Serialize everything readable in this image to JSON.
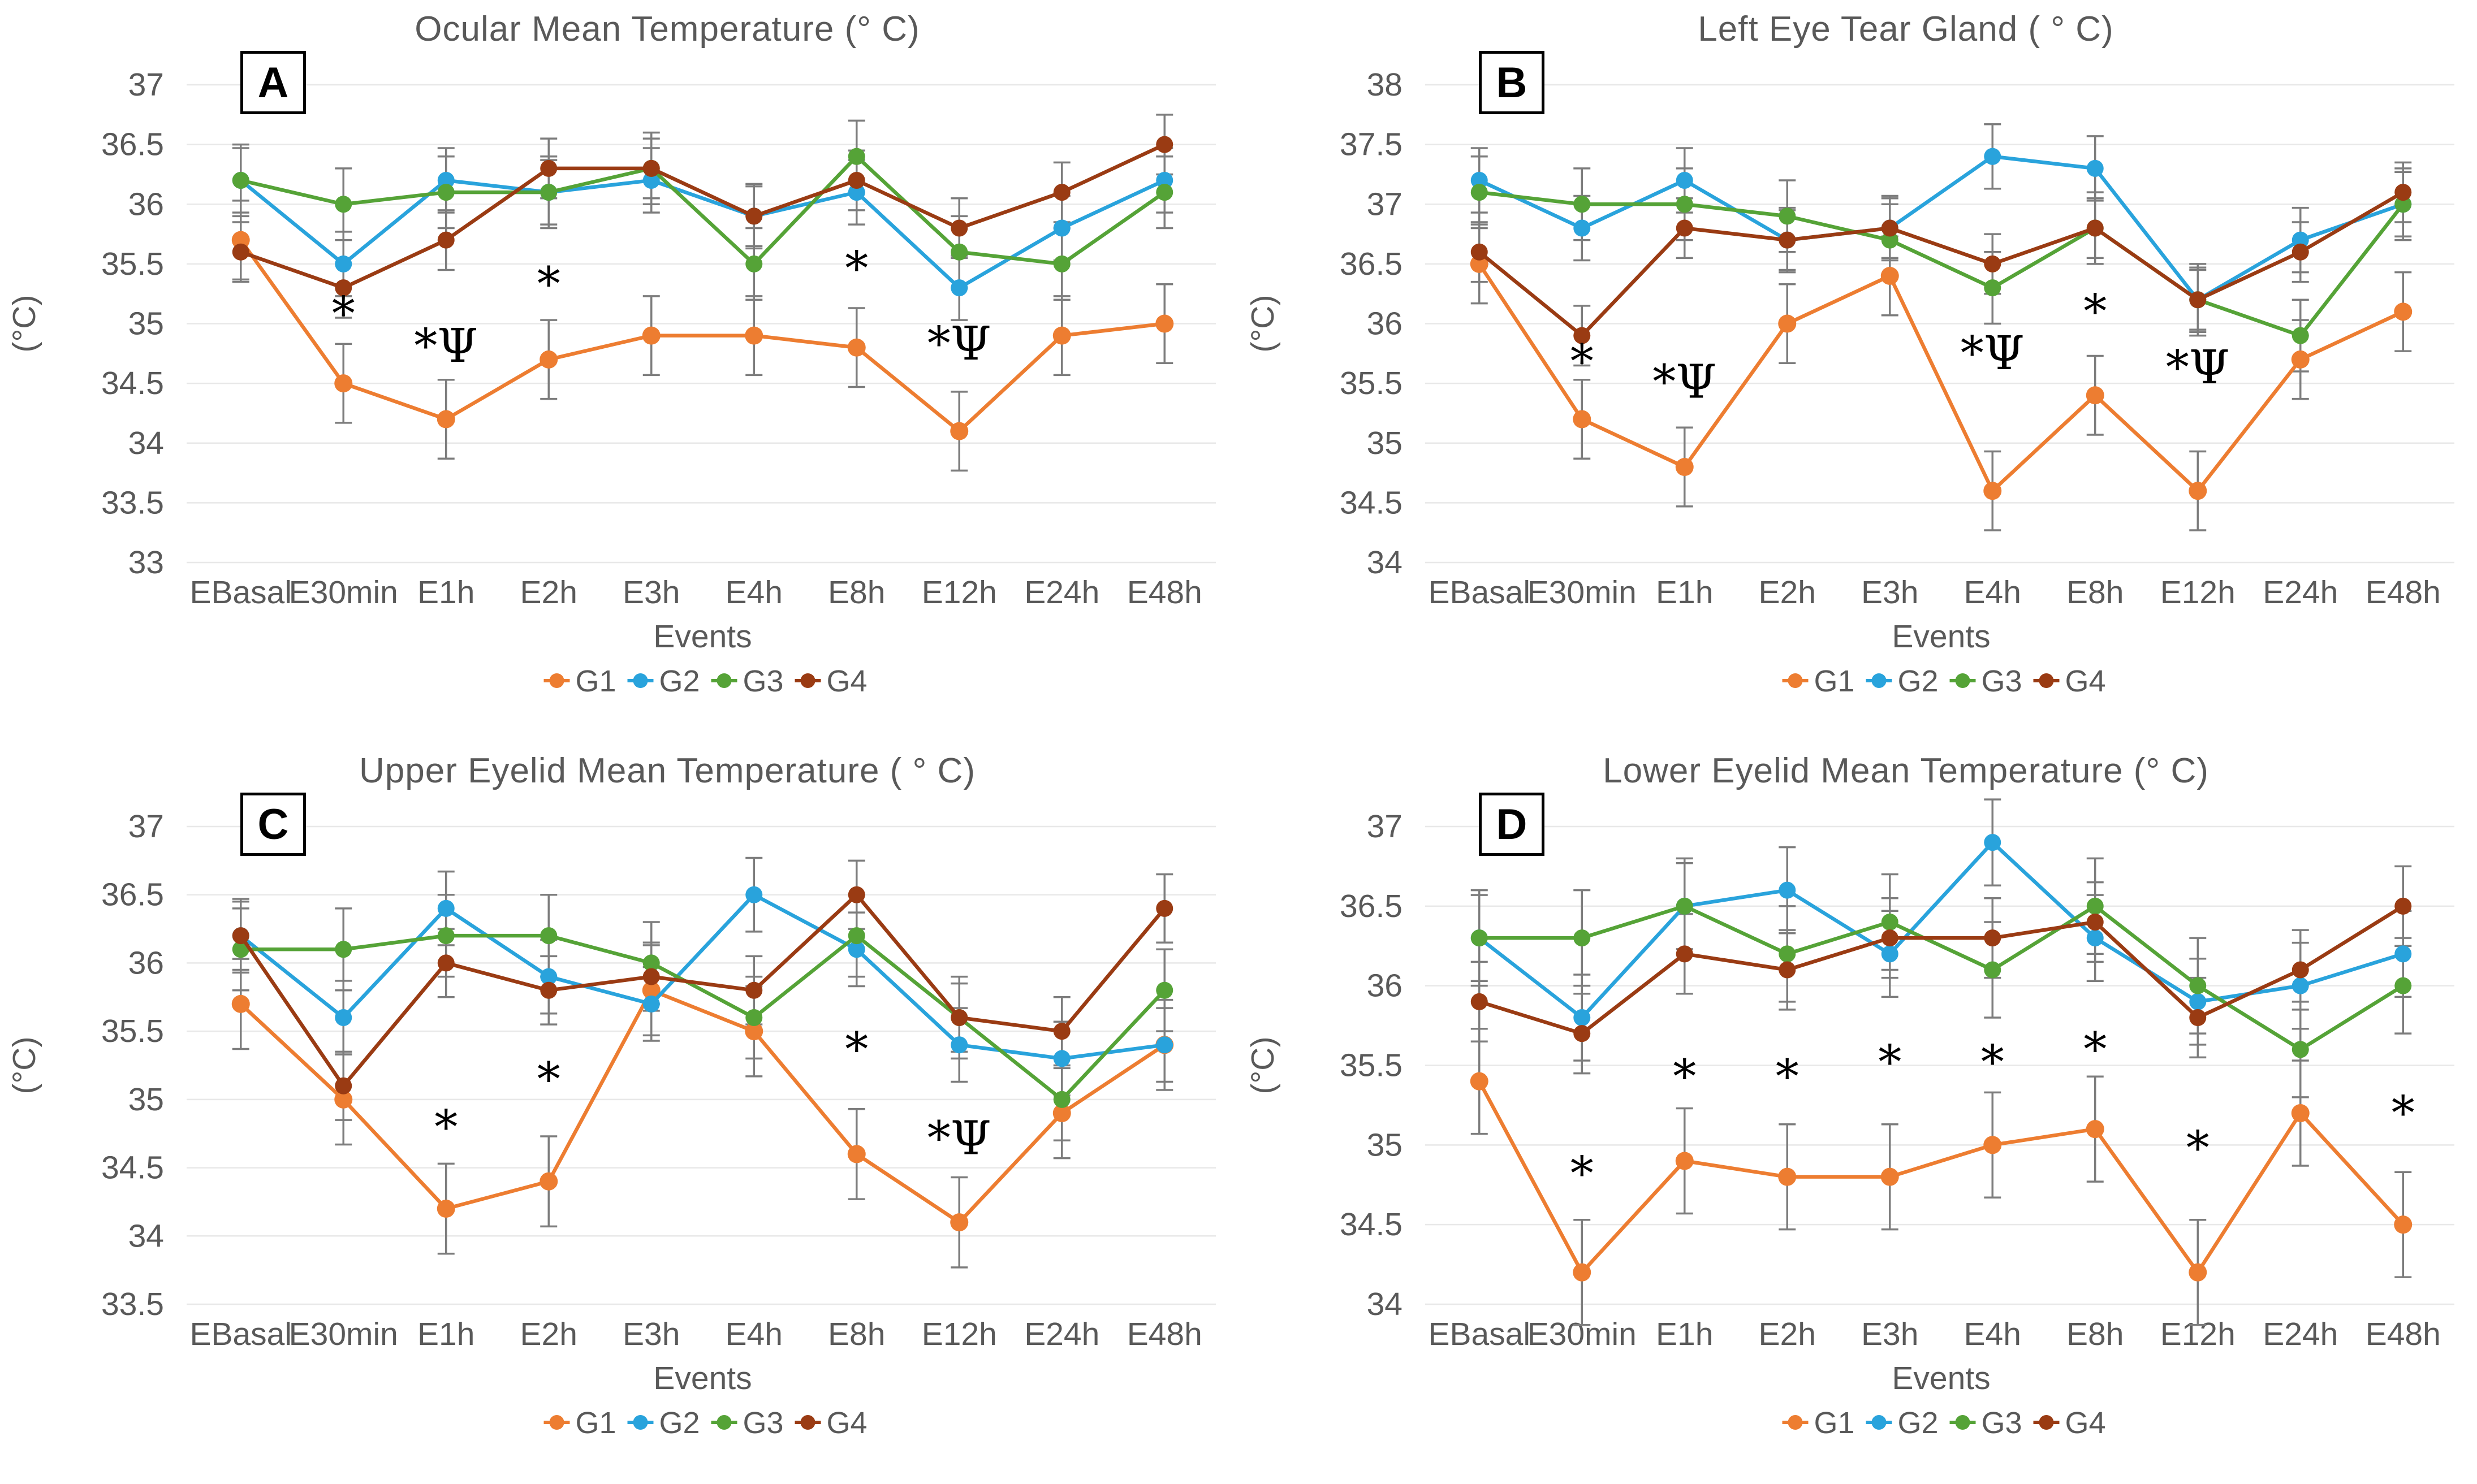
{
  "figure": {
    "background": "#FFFFFF",
    "text_color": "#595959",
    "grid_color": "#E8E8E8",
    "error_bar_color": "#7D7D7D",
    "annotation_color": "#000000"
  },
  "colors": {
    "G1": "#ED7D31",
    "G2": "#29A3DC",
    "G3": "#55A337",
    "G4": "#9A3B13"
  },
  "shared": {
    "xlabel": "Events",
    "ylabel": "(°C)",
    "categories": [
      "EBasal",
      "E30min",
      "E1h",
      "E2h",
      "E3h",
      "E4h",
      "E8h",
      "E12h",
      "E24h",
      "E48h"
    ],
    "legend": [
      "G1",
      "G2",
      "G3",
      "G4"
    ]
  },
  "chart_data": [
    {
      "id": "A",
      "type": "line",
      "letter": "A",
      "title": "Ocular Mean Temperature (° C)",
      "xlabel": "Events",
      "ylabel": "(°C)",
      "categories": [
        "EBasal",
        "E30min",
        "E1h",
        "E2h",
        "E3h",
        "E4h",
        "E8h",
        "E12h",
        "E24h",
        "E48h"
      ],
      "ylim": [
        33,
        37
      ],
      "yticks": [
        "37",
        "36.5",
        "36",
        "35.5",
        "35",
        "34.5",
        "34",
        "33.5",
        "33"
      ],
      "grid": true,
      "legend_position": "bottom",
      "series": [
        {
          "name": "G1",
          "values": [
            35.7,
            34.5,
            34.2,
            34.7,
            34.9,
            34.9,
            34.8,
            34.1,
            34.9,
            35.0
          ],
          "err": 0.33
        },
        {
          "name": "G2",
          "values": [
            36.2,
            35.5,
            36.2,
            36.1,
            36.2,
            35.9,
            36.1,
            35.3,
            35.8,
            36.2
          ],
          "err": 0.27
        },
        {
          "name": "G3",
          "values": [
            36.2,
            36.0,
            36.1,
            36.1,
            36.3,
            35.5,
            36.4,
            35.6,
            35.5,
            36.1
          ],
          "err": 0.3
        },
        {
          "name": "G4",
          "values": [
            35.6,
            35.3,
            35.7,
            36.3,
            36.3,
            35.9,
            36.2,
            35.8,
            36.1,
            36.5
          ],
          "err": 0.25
        }
      ],
      "annotations": [
        {
          "category": "E30min",
          "text": "*",
          "y": 34.95
        },
        {
          "category": "E1h",
          "text": "*Ψ",
          "y": 34.68
        },
        {
          "category": "E2h",
          "text": "*",
          "y": 35.2
        },
        {
          "category": "E8h",
          "text": "*",
          "y": 35.33
        },
        {
          "category": "E12h",
          "text": "*Ψ",
          "y": 34.7
        }
      ]
    },
    {
      "id": "B",
      "type": "line",
      "letter": "B",
      "title": "Left Eye Tear Gland ( ° C)",
      "xlabel": "Events",
      "ylabel": "(°C)",
      "categories": [
        "EBasal",
        "E30min",
        "E1h",
        "E2h",
        "E3h",
        "E4h",
        "E8h",
        "E12h",
        "E24h",
        "E48h"
      ],
      "ylim": [
        34,
        38
      ],
      "yticks": [
        "38",
        "37.5",
        "37",
        "36.5",
        "36",
        "35.5",
        "35",
        "34.5",
        "34"
      ],
      "grid": true,
      "legend_position": "bottom",
      "series": [
        {
          "name": "G1",
          "values": [
            36.5,
            35.2,
            34.8,
            36.0,
            36.4,
            34.6,
            35.4,
            34.6,
            35.7,
            36.1
          ],
          "err": 0.33
        },
        {
          "name": "G2",
          "values": [
            37.2,
            36.8,
            37.2,
            36.7,
            36.8,
            37.4,
            37.3,
            36.2,
            36.7,
            37.0
          ],
          "err": 0.27
        },
        {
          "name": "G3",
          "values": [
            37.1,
            37.0,
            37.0,
            36.9,
            36.7,
            36.3,
            36.8,
            36.2,
            35.9,
            37.0
          ],
          "err": 0.3
        },
        {
          "name": "G4",
          "values": [
            36.6,
            35.9,
            36.8,
            36.7,
            36.8,
            36.5,
            36.8,
            36.2,
            36.6,
            37.1
          ],
          "err": 0.25
        }
      ],
      "annotations": [
        {
          "category": "E30min",
          "text": "*",
          "y": 35.55
        },
        {
          "category": "E1h",
          "text": "*Ψ",
          "y": 35.38
        },
        {
          "category": "E4h",
          "text": "*Ψ",
          "y": 35.62
        },
        {
          "category": "E8h",
          "text": "*",
          "y": 35.97
        },
        {
          "category": "E12h",
          "text": "*Ψ",
          "y": 35.5
        }
      ]
    },
    {
      "id": "C",
      "type": "line",
      "letter": "C",
      "title": "Upper Eyelid Mean Temperature ( ° C)",
      "xlabel": "Events",
      "ylabel": "(°C)",
      "categories": [
        "EBasal",
        "E30min",
        "E1h",
        "E2h",
        "E3h",
        "E4h",
        "E8h",
        "E12h",
        "E24h",
        "E48h"
      ],
      "ylim": [
        33.5,
        37
      ],
      "yticks": [
        "37",
        "36.5",
        "36",
        "35.5",
        "35",
        "34.5",
        "34",
        "33.5"
      ],
      "grid": true,
      "legend_position": "bottom",
      "series": [
        {
          "name": "G1",
          "values": [
            35.7,
            35.0,
            34.2,
            34.4,
            35.8,
            35.5,
            34.6,
            34.1,
            34.9,
            35.4
          ],
          "err": 0.33
        },
        {
          "name": "G2",
          "values": [
            36.2,
            35.6,
            36.4,
            35.9,
            35.7,
            36.5,
            36.1,
            35.4,
            35.3,
            35.4
          ],
          "err": 0.27
        },
        {
          "name": "G3",
          "values": [
            36.1,
            36.1,
            36.2,
            36.2,
            36.0,
            35.6,
            36.2,
            35.6,
            35.0,
            35.8
          ],
          "err": 0.3
        },
        {
          "name": "G4",
          "values": [
            36.2,
            35.1,
            36.0,
            35.8,
            35.9,
            35.8,
            36.5,
            35.6,
            35.5,
            36.4
          ],
          "err": 0.25
        }
      ],
      "annotations": [
        {
          "category": "E1h",
          "text": "*",
          "y": 34.68
        },
        {
          "category": "E2h",
          "text": "*",
          "y": 35.03
        },
        {
          "category": "E8h",
          "text": "*",
          "y": 35.25
        },
        {
          "category": "E12h",
          "text": "*Ψ",
          "y": 34.6
        }
      ]
    },
    {
      "id": "D",
      "type": "line",
      "letter": "D",
      "title": "Lower Eyelid Mean Temperature (° C)",
      "xlabel": "Events",
      "ylabel": "(°C)",
      "categories": [
        "EBasal",
        "E30min",
        "E1h",
        "E2h",
        "E3h",
        "E4h",
        "E8h",
        "E12h",
        "E24h",
        "E48h"
      ],
      "ylim": [
        34,
        37
      ],
      "yticks": [
        "37",
        "36.5",
        "36",
        "35.5",
        "35",
        "34.5",
        "34"
      ],
      "grid": true,
      "legend_position": "bottom",
      "series": [
        {
          "name": "G1",
          "values": [
            35.4,
            34.2,
            34.9,
            34.8,
            34.8,
            35.0,
            35.1,
            34.2,
            35.2,
            34.5
          ],
          "err": 0.33
        },
        {
          "name": "G2",
          "values": [
            36.3,
            35.8,
            36.5,
            36.6,
            36.2,
            36.9,
            36.3,
            35.9,
            36.0,
            36.2
          ],
          "err": 0.27
        },
        {
          "name": "G3",
          "values": [
            36.3,
            36.3,
            36.5,
            36.2,
            36.4,
            36.1,
            36.5,
            36.0,
            35.6,
            36.0
          ],
          "err": 0.3
        },
        {
          "name": "G4",
          "values": [
            35.9,
            35.7,
            36.2,
            36.1,
            36.3,
            36.3,
            36.4,
            35.8,
            36.1,
            36.5
          ],
          "err": 0.25
        }
      ],
      "annotations": [
        {
          "category": "E30min",
          "text": "*",
          "y": 34.72
        },
        {
          "category": "E1h",
          "text": "*",
          "y": 35.33
        },
        {
          "category": "E2h",
          "text": "*",
          "y": 35.33
        },
        {
          "category": "E3h",
          "text": "*",
          "y": 35.42
        },
        {
          "category": "E4h",
          "text": "*",
          "y": 35.42
        },
        {
          "category": "E8h",
          "text": "*",
          "y": 35.5
        },
        {
          "category": "E12h",
          "text": "*",
          "y": 34.88
        },
        {
          "category": "E48h",
          "text": "*",
          "y": 35.1
        }
      ]
    }
  ]
}
